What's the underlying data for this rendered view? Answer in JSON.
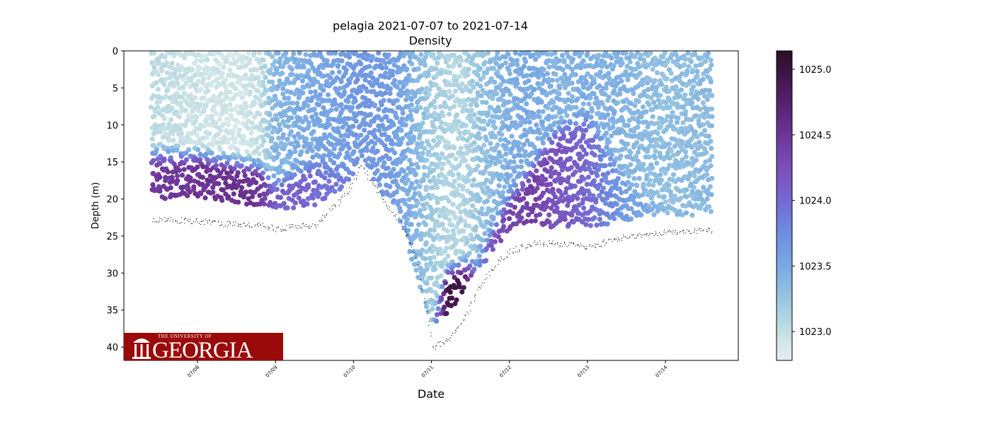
{
  "chart_data": {
    "type": "scatter",
    "title": "pelagia 2021-07-07 to 2021-07-14",
    "subtitle": "Density",
    "xlabel": "Date",
    "ylabel": "Depth (m)",
    "xlim": [
      "2021-07-07T01:20",
      "2021-07-14T22:25"
    ],
    "ylim": [
      41.8,
      0
    ],
    "y_inverted": true,
    "xticks": [
      "07/08",
      "07/09",
      "07/10",
      "07/11",
      "07/12",
      "07/13",
      "07/14"
    ],
    "xtick_dates": [
      "2021-07-08",
      "2021-07-09",
      "2021-07-10",
      "2021-07-11",
      "2021-07-12",
      "2021-07-13",
      "2021-07-14"
    ],
    "yticks": [
      0,
      5,
      10,
      15,
      20,
      25,
      30,
      35,
      40
    ],
    "colorbar": {
      "range": [
        1022.78,
        1025.14
      ],
      "ticks": [
        "1023.0",
        "1023.5",
        "1024.0",
        "1024.5",
        "1025.0"
      ],
      "tick_values": [
        1023.0,
        1023.5,
        1024.0,
        1024.5,
        1025.0
      ],
      "colormap_stops": [
        [
          "1022.78",
          "#e6f0f0"
        ],
        [
          "1023.0",
          "#c4dfe3"
        ],
        [
          "1023.25",
          "#98c6e0"
        ],
        [
          "1023.5",
          "#79a9e4"
        ],
        [
          "1023.75",
          "#6e8ee0"
        ],
        [
          "1024.0",
          "#7668d2"
        ],
        [
          "1024.25",
          "#7a4fb8"
        ],
        [
          "1024.5",
          "#6d3595"
        ],
        [
          "1024.75",
          "#56206e"
        ],
        [
          "1025.0",
          "#3b1440"
        ],
        [
          "1025.14",
          "#2b0f23"
        ]
      ]
    },
    "profile_columns": [
      "time",
      "max_profile_depth_m",
      "bottom_depth_m",
      "surface_density",
      "deep_density",
      "pycnocline_depth_m"
    ],
    "profiles": [
      [
        "2021-07-07T10:00",
        20,
        22.7,
        1023.05,
        1024.45,
        14
      ],
      [
        "2021-07-08T00:00",
        20,
        23,
        1022.95,
        1024.5,
        14
      ],
      [
        "2021-07-08T12:00",
        20.5,
        23.5,
        1022.9,
        1024.55,
        15
      ],
      [
        "2021-07-08T19:00",
        21,
        23.5,
        1023.0,
        1024.5,
        15.5
      ],
      [
        "2021-07-09T00:00",
        21.5,
        24,
        1023.4,
        1024.1,
        18
      ],
      [
        "2021-07-09T12:00",
        21,
        23.5,
        1023.5,
        1024.0,
        15
      ],
      [
        "2021-07-09T22:00",
        18,
        19,
        1023.6,
        1023.8,
        16
      ],
      [
        "2021-07-10T02:00",
        14.5,
        15.5,
        1023.65,
        1023.65,
        15
      ],
      [
        "2021-07-10T10:00",
        20,
        21,
        1023.65,
        1023.6,
        20
      ],
      [
        "2021-07-10T14:00",
        22,
        23,
        1023.55,
        1023.55,
        22
      ],
      [
        "2021-07-10T19:00",
        30,
        28,
        1023.4,
        1023.45,
        30
      ],
      [
        "2021-07-11T00:00",
        37,
        40,
        1023.2,
        1023.45,
        37
      ],
      [
        "2021-07-11T05:00",
        36,
        39,
        1023.1,
        1025.0,
        30
      ],
      [
        "2021-07-11T10:00",
        32,
        36,
        1023.1,
        1024.9,
        29
      ],
      [
        "2021-07-11T14:00",
        30,
        32,
        1023.25,
        1023.7,
        28
      ],
      [
        "2021-07-11T19:00",
        27,
        29,
        1023.35,
        1024.2,
        24
      ],
      [
        "2021-07-12T00:00",
        24,
        27,
        1023.45,
        1024.35,
        20
      ],
      [
        "2021-07-12T07:00",
        23,
        26,
        1023.5,
        1024.4,
        16
      ],
      [
        "2021-07-12T14:00",
        24,
        26,
        1023.4,
        1024.2,
        11
      ],
      [
        "2021-07-13T00:00",
        24,
        26.5,
        1023.45,
        1024.0,
        9
      ],
      [
        "2021-07-13T12:00",
        23,
        25,
        1023.4,
        1023.6,
        18
      ],
      [
        "2021-07-14T00:00",
        22.5,
        24.5,
        1023.3,
        1023.4,
        22
      ],
      [
        "2021-07-14T14:00",
        22,
        24.2,
        1023.35,
        1023.4,
        22
      ]
    ]
  },
  "logo": {
    "line1": "THE UNIVERSITY OF",
    "line2": "GEORGIA",
    "background": "#9b0a0a"
  }
}
